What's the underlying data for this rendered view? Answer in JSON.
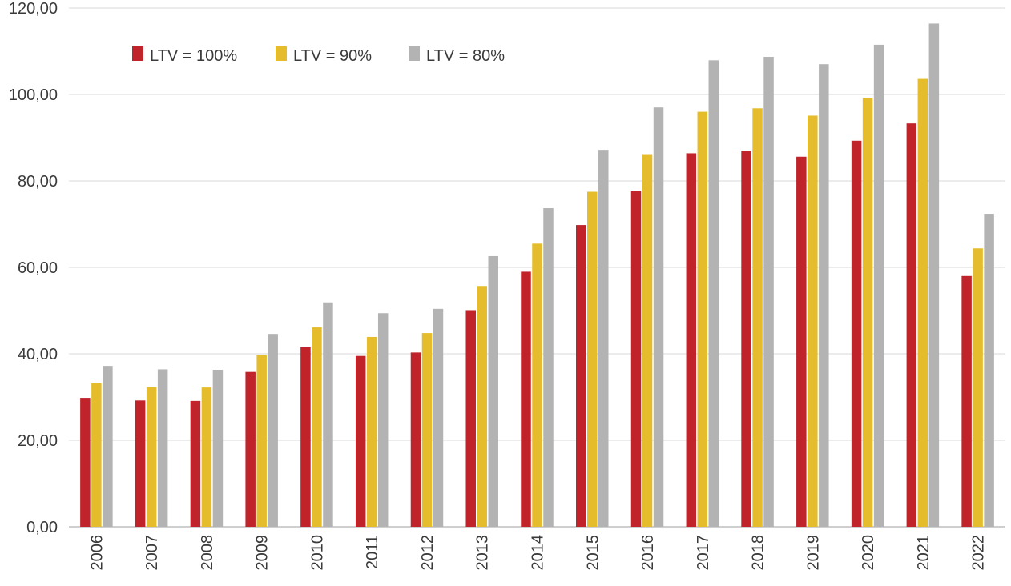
{
  "chart_data": {
    "type": "bar",
    "title": "",
    "xlabel": "",
    "ylabel": "",
    "categories": [
      "2006",
      "2007",
      "2008",
      "2009",
      "2010",
      "2011",
      "2012",
      "2013",
      "2014",
      "2015",
      "2016",
      "2017",
      "2018",
      "2019",
      "2020",
      "2021",
      "2022"
    ],
    "series": [
      {
        "name": "LTV = 100%",
        "color": "#c0232a",
        "values": [
          29.8,
          29.2,
          29.1,
          35.8,
          41.5,
          39.5,
          40.3,
          50.1,
          59.0,
          69.8,
          77.6,
          86.4,
          87.0,
          85.6,
          89.3,
          93.3,
          58.0
        ]
      },
      {
        "name": "LTV = 90%",
        "color": "#e5bd2c",
        "values": [
          33.2,
          32.3,
          32.2,
          39.7,
          46.1,
          43.9,
          44.8,
          55.7,
          65.5,
          77.5,
          86.2,
          96.0,
          96.8,
          95.1,
          99.2,
          103.6,
          64.4
        ]
      },
      {
        "name": "LTV = 80%",
        "color": "#b3b3b3",
        "values": [
          37.2,
          36.4,
          36.3,
          44.6,
          51.9,
          49.4,
          50.4,
          62.6,
          73.7,
          87.2,
          97.0,
          107.9,
          108.7,
          107.0,
          111.5,
          116.4,
          72.4
        ]
      }
    ],
    "yticks": [
      "0,00",
      "20,00",
      "40,00",
      "60,00",
      "80,00",
      "100,00",
      "120,00"
    ],
    "ylim": [
      0,
      120
    ],
    "grid": true,
    "legend_position": "top-left"
  }
}
